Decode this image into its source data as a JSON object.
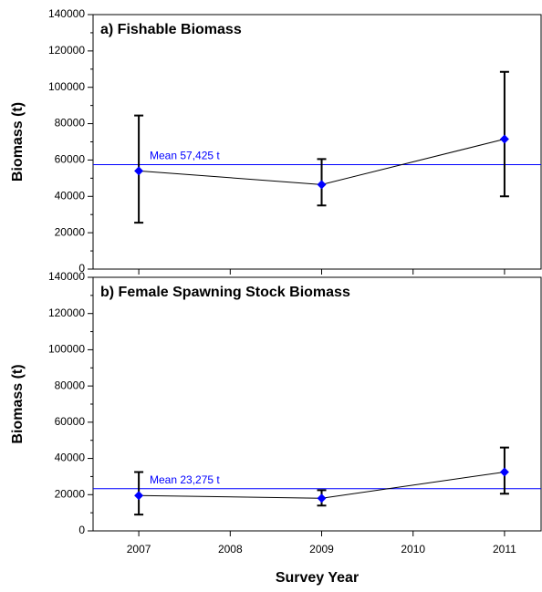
{
  "chart_data": [
    {
      "type": "line",
      "title": "a) Fishable Biomass",
      "ylabel": "Biomass (t)",
      "x": [
        2007,
        2009,
        2011
      ],
      "values": [
        54000,
        46500,
        71500
      ],
      "lower": [
        25500,
        35000,
        40000
      ],
      "upper": [
        84500,
        60500,
        108500
      ],
      "color": "#0000ff",
      "line_color": "#000000",
      "mean": 57425,
      "mean_label": "Mean 57,425 t",
      "xlim": [
        2006.5,
        2011.4
      ],
      "xticks": [
        2007,
        2008,
        2009,
        2010,
        2011
      ],
      "ylim": [
        0,
        140000
      ],
      "yticks": [
        0,
        20000,
        40000,
        60000,
        80000,
        100000,
        120000,
        140000
      ]
    },
    {
      "type": "line",
      "title": "b) Female Spawning Stock Biomass",
      "ylabel": "Biomass (t)",
      "xlabel": "Survey Year",
      "x": [
        2007,
        2009,
        2011
      ],
      "values": [
        19500,
        18000,
        32500
      ],
      "lower": [
        9000,
        14000,
        20500
      ],
      "upper": [
        32500,
        22500,
        46000
      ],
      "color": "#0000ff",
      "line_color": "#000000",
      "mean": 23275,
      "mean_label": "Mean 23,275 t",
      "xlim": [
        2006.5,
        2011.4
      ],
      "xticks": [
        2007,
        2008,
        2009,
        2010,
        2011
      ],
      "ylim": [
        0,
        140000
      ],
      "yticks": [
        0,
        20000,
        40000,
        60000,
        80000,
        100000,
        120000,
        140000
      ]
    }
  ]
}
